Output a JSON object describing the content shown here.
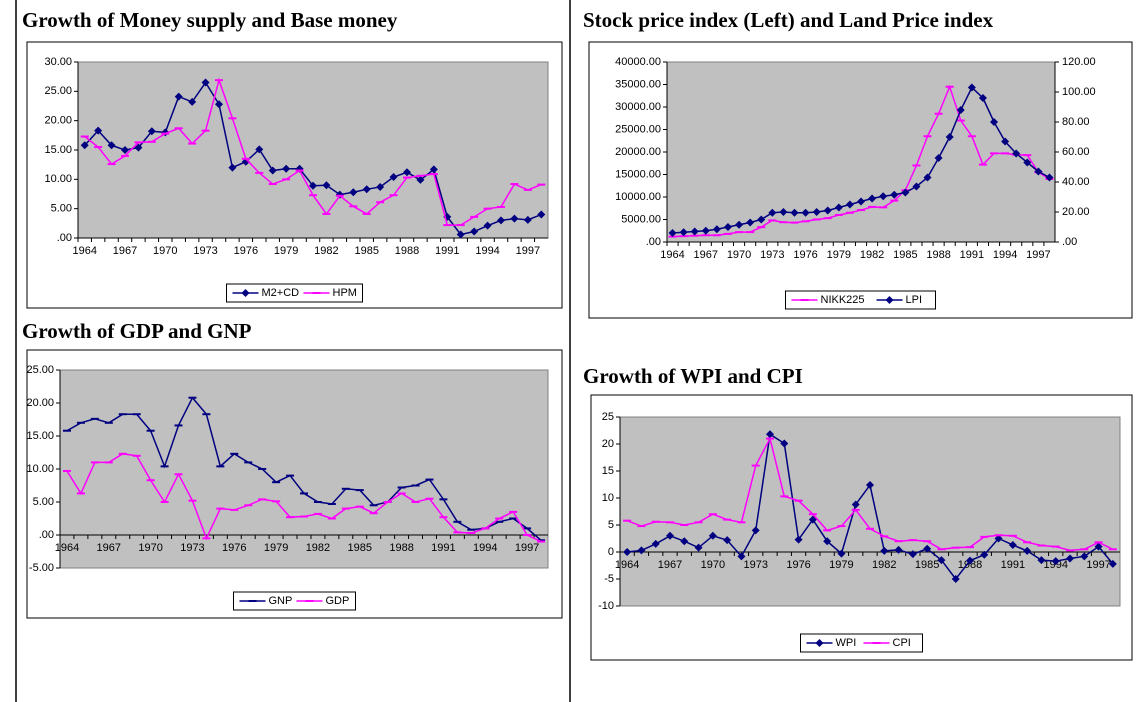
{
  "chart_data": [
    {
      "type": "line",
      "title": "Growth of Money supply and  Base money",
      "categories": [
        "1964",
        null,
        null,
        "1967",
        null,
        null,
        "1970",
        null,
        null,
        "1973",
        null,
        null,
        "1976",
        null,
        null,
        "1979",
        null,
        null,
        "1982",
        null,
        null,
        "1985",
        null,
        null,
        "1988",
        null,
        null,
        "1991",
        null,
        null,
        "1994",
        null,
        null,
        "1997",
        null
      ],
      "series": [
        {
          "name": "M2+CD",
          "color": "#000080",
          "marker": "diamond",
          "values": [
            15.8,
            18.3,
            15.8,
            15.0,
            15.4,
            18.2,
            18.0,
            24.1,
            23.2,
            26.5,
            22.8,
            12.0,
            13.0,
            15.1,
            11.5,
            11.8,
            11.8,
            8.9,
            9.0,
            7.4,
            7.8,
            8.3,
            8.7,
            10.4,
            11.2,
            9.9,
            11.7,
            3.6,
            0.6,
            1.1,
            2.1,
            3.0,
            3.3,
            3.1,
            4.0
          ]
        },
        {
          "name": "HPM",
          "color": "#ff00ff",
          "marker": "dash",
          "values": [
            17.3,
            15.5,
            12.6,
            14.0,
            16.3,
            16.4,
            17.8,
            18.7,
            16.1,
            18.3,
            26.9,
            20.4,
            13.5,
            11.1,
            9.2,
            10.0,
            11.5,
            7.3,
            4.1,
            7.2,
            5.4,
            4.1,
            6.1,
            7.3,
            10.3,
            10.6,
            10.9,
            2.2,
            2.2,
            3.6,
            5.0,
            5.3,
            9.2,
            8.2,
            9.1
          ]
        }
      ],
      "ylim": [
        0,
        30
      ],
      "yticks": [
        {
          "value": 0,
          "label": ".00"
        },
        {
          "value": 5,
          "label": "5.00"
        },
        {
          "value": 10,
          "label": "10.00"
        },
        {
          "value": 15,
          "label": "15.00"
        },
        {
          "value": 20,
          "label": "20.00"
        },
        {
          "value": 25,
          "label": "25.00"
        },
        {
          "value": 30,
          "label": "30.00"
        }
      ],
      "legend": "bottom"
    },
    {
      "type": "line",
      "title": "Growth of GDP and GNP",
      "categories": [
        "1964",
        null,
        null,
        "1967",
        null,
        null,
        "1970",
        null,
        null,
        "1973",
        null,
        null,
        "1976",
        null,
        null,
        "1979",
        null,
        null,
        "1982",
        null,
        null,
        "1985",
        null,
        null,
        "1988",
        null,
        null,
        "1991",
        null,
        null,
        "1994",
        null,
        null,
        "1997",
        null
      ],
      "series": [
        {
          "name": "GNP",
          "color": "#000080",
          "marker": "dash",
          "values": [
            15.8,
            17.0,
            17.6,
            17.0,
            18.3,
            18.3,
            15.8,
            10.4,
            16.6,
            20.8,
            18.3,
            10.4,
            12.3,
            11.0,
            10.0,
            8.0,
            9.0,
            6.3,
            5.0,
            4.7,
            7.0,
            6.8,
            4.5,
            5.0,
            7.2,
            7.5,
            8.4,
            5.4,
            2.0,
            0.8,
            1.0,
            2.0,
            2.5,
            1.0,
            -0.8
          ]
        },
        {
          "name": "GDP",
          "color": "#ff00ff",
          "marker": "dash",
          "values": [
            9.7,
            6.3,
            11.0,
            11.0,
            12.3,
            12.0,
            8.3,
            5.0,
            9.2,
            5.2,
            -0.5,
            4.0,
            3.8,
            4.5,
            5.4,
            5.1,
            2.7,
            2.8,
            3.2,
            2.5,
            4.0,
            4.3,
            3.3,
            5.0,
            6.3,
            5.0,
            5.5,
            2.7,
            0.4,
            0.3,
            1.0,
            2.5,
            3.5,
            0.0,
            -1.0
          ]
        }
      ],
      "ylim": [
        -5,
        25
      ],
      "yticks": [
        {
          "value": -5,
          "label": "-5.00"
        },
        {
          "value": 0,
          "label": ".00"
        },
        {
          "value": 5,
          "label": "5.00"
        },
        {
          "value": 10,
          "label": "10.00"
        },
        {
          "value": 15,
          "label": "15.00"
        },
        {
          "value": 20,
          "label": "20.00"
        },
        {
          "value": 25,
          "label": "25.00"
        }
      ],
      "legend": "bottom"
    },
    {
      "type": "line",
      "title": "Stock price index (Left)  and Land Price index",
      "categories": [
        "1964",
        null,
        null,
        "1967",
        null,
        null,
        "1970",
        null,
        null,
        "1973",
        null,
        null,
        "1976",
        null,
        null,
        "1979",
        null,
        null,
        "1982",
        null,
        null,
        "1985",
        null,
        null,
        "1988",
        null,
        null,
        "1991",
        null,
        null,
        "1994",
        null,
        null,
        "1997",
        null
      ],
      "series": [
        {
          "name": "NIKK225",
          "color": "#ff00ff",
          "marker": "dash",
          "values": [
            1200,
            1300,
            1400,
            1500,
            1500,
            1800,
            2200,
            2200,
            3300,
            4800,
            4400,
            4300,
            4600,
            5000,
            5300,
            6000,
            6500,
            7100,
            7800,
            7700,
            9200,
            11500,
            17000,
            23500,
            28500,
            34500,
            27000,
            23500,
            17200,
            19700,
            19700,
            19400,
            19300,
            15500,
            14000
          ]
        },
        {
          "name": "LPI",
          "color": "#000080",
          "marker": "diamond",
          "axis": "y2",
          "values": [
            6,
            6.5,
            7,
            7.5,
            8.5,
            10,
            11.5,
            13,
            15,
            19.5,
            20,
            19.5,
            19.5,
            20,
            21,
            23,
            25,
            27,
            29,
            30.5,
            31.5,
            33,
            37,
            43,
            56,
            70,
            88,
            103,
            96,
            80,
            67,
            59,
            53,
            47,
            43
          ]
        }
      ],
      "ylim": [
        0,
        40000
      ],
      "yticks": [
        {
          "value": 0,
          "label": ".00"
        },
        {
          "value": 5000,
          "label": "5000.00"
        },
        {
          "value": 10000,
          "label": "10000.00"
        },
        {
          "value": 15000,
          "label": "15000.00"
        },
        {
          "value": 20000,
          "label": "20000.00"
        },
        {
          "value": 25000,
          "label": "25000.00"
        },
        {
          "value": 30000,
          "label": "30000.00"
        },
        {
          "value": 35000,
          "label": "35000.00"
        },
        {
          "value": 40000,
          "label": "40000.00"
        }
      ],
      "y2lim": [
        0,
        120
      ],
      "y2ticks": [
        {
          "value": 0,
          "label": ".00"
        },
        {
          "value": 20,
          "label": "20.00"
        },
        {
          "value": 40,
          "label": "40.00"
        },
        {
          "value": 60,
          "label": "60.00"
        },
        {
          "value": 80,
          "label": "80.00"
        },
        {
          "value": 100,
          "label": "100.00"
        },
        {
          "value": 120,
          "label": "120.00"
        }
      ],
      "legend": "bottom"
    },
    {
      "type": "line",
      "title": "Growth of WPI and CPI",
      "categories": [
        "1964",
        null,
        null,
        "1967",
        null,
        null,
        "1970",
        null,
        null,
        "1973",
        null,
        null,
        "1976",
        null,
        null,
        "1979",
        null,
        null,
        "1982",
        null,
        null,
        "1985",
        null,
        null,
        "1988",
        null,
        null,
        "1991",
        null,
        null,
        "1994",
        null,
        null,
        "1997",
        null
      ],
      "series": [
        {
          "name": "WPI",
          "color": "#000080",
          "marker": "diamond",
          "values": [
            0,
            0.3,
            1.5,
            3,
            2,
            0.8,
            3,
            2.2,
            -0.8,
            4,
            21.8,
            20.1,
            2.3,
            6,
            2,
            -0.3,
            8.8,
            12.4,
            0.2,
            0.4,
            -0.4,
            0.6,
            -1.5,
            -5,
            -1.6,
            -0.5,
            2.5,
            1.3,
            0.2,
            -1.5,
            -1.7,
            -1.2,
            -0.8,
            1,
            -2.2
          ]
        },
        {
          "name": "CPI",
          "color": "#ff00ff",
          "marker": "dash",
          "values": [
            5.8,
            4.8,
            5.6,
            5.5,
            5,
            5.5,
            7,
            6,
            5.5,
            16,
            21,
            10.3,
            9.5,
            7,
            4,
            4.8,
            7.8,
            4.3,
            2.9,
            2,
            2.2,
            2,
            0.5,
            0.8,
            0.9,
            2.8,
            3.1,
            3,
            1.8,
            1.2,
            1,
            0.3,
            0.5,
            1.8,
            0.5
          ]
        }
      ],
      "ylim": [
        -10,
        25
      ],
      "yticks": [
        -10,
        -5,
        0,
        5,
        10,
        15,
        20,
        25
      ],
      "legend": "bottom"
    }
  ]
}
